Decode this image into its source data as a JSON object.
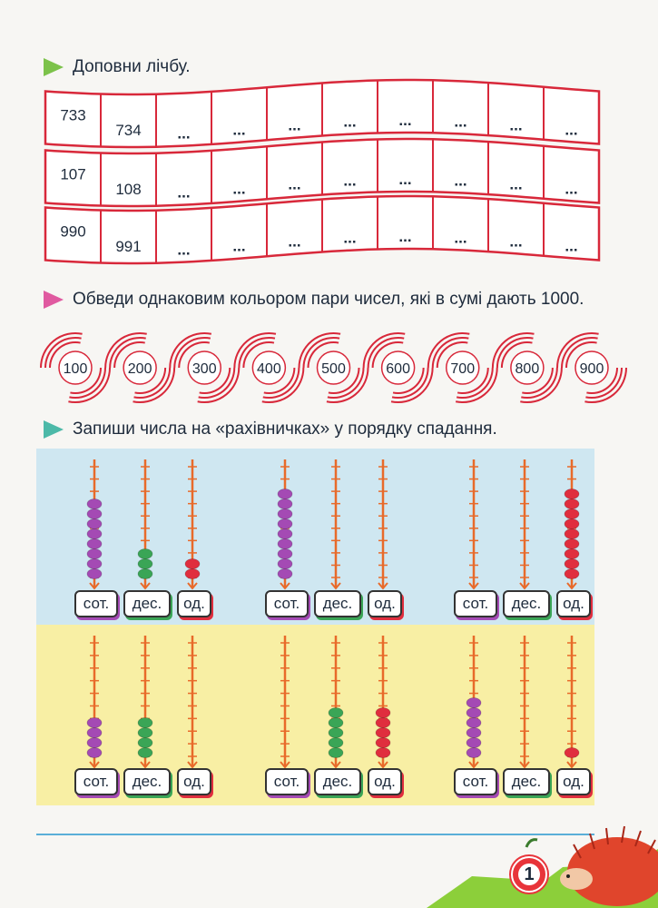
{
  "tasks": {
    "task1": "Доповни лічбу.",
    "task2": "Обведи однаковим кольором пари чисел, які в сумі дають 1000.",
    "task3": "Запиши числа на «рахівничках» у порядку спадання."
  },
  "ribbons": [
    {
      "cells": [
        "733",
        "734",
        "...",
        "...",
        "...",
        "...",
        "...",
        "...",
        "...",
        "..."
      ]
    },
    {
      "cells": [
        "107",
        "108",
        "...",
        "...",
        "...",
        "...",
        "...",
        "...",
        "...",
        "..."
      ]
    },
    {
      "cells": [
        "990",
        "991",
        "...",
        "...",
        "...",
        "...",
        "...",
        "...",
        "...",
        "..."
      ]
    }
  ],
  "spirals": [
    "100",
    "200",
    "300",
    "400",
    "500",
    "600",
    "700",
    "800",
    "900"
  ],
  "abacus_labels": {
    "hundreds": "сот.",
    "tens": "дес.",
    "ones": "од."
  },
  "abaci": [
    {
      "hundreds": 8,
      "tens": 3,
      "ones": 2
    },
    {
      "hundreds": 9,
      "tens": 0,
      "ones": 0
    },
    {
      "hundreds": 0,
      "tens": 0,
      "ones": 9
    },
    {
      "hundreds": 4,
      "tens": 4,
      "ones": 0
    },
    {
      "hundreds": 0,
      "tens": 5,
      "ones": 5
    },
    {
      "hundreds": 6,
      "tens": 0,
      "ones": 1
    }
  ],
  "page_number": "1",
  "colors": {
    "ribbon": "#d8283a",
    "hundreds_bead": "#a44ab4",
    "tens_bead": "#3aa556",
    "ones_bead": "#e02e3e",
    "rod": "#e86a2a",
    "panel_blue": "#cfe7f1",
    "panel_yellow": "#f8efa4",
    "divider": "#5aaed8"
  },
  "icons": [
    "green-triangle-icon",
    "pink-triangle-icon",
    "teal-triangle-icon",
    "apple-icon",
    "hedgehog-icon"
  ]
}
